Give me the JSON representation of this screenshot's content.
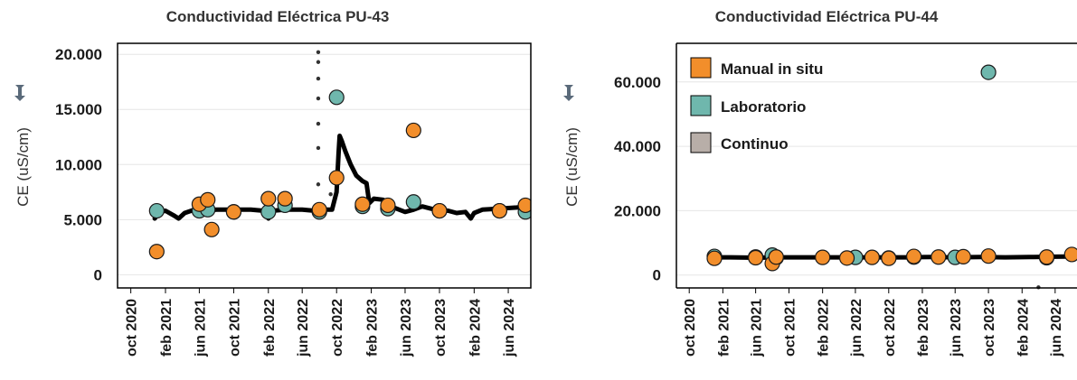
{
  "colors": {
    "manual": "#f28e2b",
    "laboratorio": "#6fb7ad",
    "continuo": "#b8aea8",
    "continuo_line": "#000000",
    "pin": "#5a6a7a"
  },
  "legend": {
    "items": [
      {
        "label": "Manual in situ",
        "color": "#f28e2b"
      },
      {
        "label": "Laboratorio",
        "color": "#6fb7ad"
      },
      {
        "label": "Continuo",
        "color": "#b8aea8"
      }
    ]
  },
  "chart_data": [
    {
      "type": "scatter",
      "title": "Conductividad Eléctrica PU-43",
      "ylabel": "CE (uS/cm)",
      "xlim": [
        "2020-08-15",
        "2024-08-20"
      ],
      "ylim": [
        -1200,
        21000
      ],
      "yticks": [
        {
          "value": 0,
          "label": "0"
        },
        {
          "value": 5000,
          "label": "5.000"
        },
        {
          "value": 10000,
          "label": "10.000"
        },
        {
          "value": 15000,
          "label": "15.000"
        },
        {
          "value": 20000,
          "label": "20.000"
        }
      ],
      "xticks": [
        {
          "date": "2020-10-01",
          "label": "oct 2020"
        },
        {
          "date": "2021-02-01",
          "label": "feb 2021"
        },
        {
          "date": "2021-06-01",
          "label": "jun 2021"
        },
        {
          "date": "2021-10-01",
          "label": "oct 2021"
        },
        {
          "date": "2022-02-01",
          "label": "feb 2022"
        },
        {
          "date": "2022-06-01",
          "label": "jun 2022"
        },
        {
          "date": "2022-10-01",
          "label": "oct 2022"
        },
        {
          "date": "2023-02-01",
          "label": "feb 2023"
        },
        {
          "date": "2023-06-01",
          "label": "jun 2023"
        },
        {
          "date": "2023-10-01",
          "label": "oct 2023"
        },
        {
          "date": "2024-02-01",
          "label": "feb 2024"
        },
        {
          "date": "2024-06-01",
          "label": "jun 2024"
        }
      ],
      "series": [
        {
          "name": "Continuo",
          "kind": "continuous",
          "points": [
            [
              "2020-12-25",
              5100
            ],
            [
              "2021-01-10",
              5700
            ],
            [
              "2021-02-01",
              5800
            ],
            [
              "2021-03-01",
              5400
            ],
            [
              "2021-03-20",
              5100
            ],
            [
              "2021-04-10",
              5600
            ],
            [
              "2021-05-15",
              5900
            ],
            [
              "2021-06-15",
              5800
            ],
            [
              "2021-08-01",
              5900
            ],
            [
              "2021-10-01",
              5900
            ],
            [
              "2021-12-01",
              5900
            ],
            [
              "2022-01-15",
              5800
            ],
            [
              "2022-02-01",
              5100
            ],
            [
              "2022-02-15",
              5800
            ],
            [
              "2022-04-01",
              5900
            ],
            [
              "2022-06-01",
              5900
            ],
            [
              "2022-07-15",
              5800
            ],
            [
              "2022-08-10",
              5900
            ],
            [
              "2022-09-15",
              5900
            ],
            [
              "2022-10-01",
              7500
            ],
            [
              "2022-10-08",
              11000
            ],
            [
              "2022-10-12",
              12600
            ],
            [
              "2022-10-20",
              12100
            ],
            [
              "2022-11-01",
              11200
            ],
            [
              "2022-11-20",
              10000
            ],
            [
              "2022-12-10",
              9000
            ],
            [
              "2023-01-01",
              8500
            ],
            [
              "2023-01-15",
              8300
            ],
            [
              "2023-01-25",
              6500
            ],
            [
              "2023-02-10",
              6900
            ],
            [
              "2023-03-15",
              6800
            ],
            [
              "2023-04-01",
              6300
            ],
            [
              "2023-05-01",
              6000
            ],
            [
              "2023-06-01",
              5700
            ],
            [
              "2023-07-01",
              5900
            ],
            [
              "2023-08-01",
              6200
            ],
            [
              "2023-09-15",
              5900
            ],
            [
              "2023-11-01",
              5800
            ],
            [
              "2023-12-01",
              5600
            ],
            [
              "2024-01-01",
              5700
            ],
            [
              "2024-01-20",
              5100
            ],
            [
              "2024-02-01",
              5600
            ],
            [
              "2024-03-01",
              5900
            ],
            [
              "2024-05-01",
              6000
            ],
            [
              "2024-07-01",
              6100
            ],
            [
              "2024-08-15",
              6200
            ]
          ]
        },
        {
          "name": "Continuo",
          "kind": "dots",
          "points": [
            [
              "2022-07-28",
              20200
            ],
            [
              "2022-07-28",
              19300
            ],
            [
              "2022-07-28",
              17800
            ],
            [
              "2022-07-28",
              16000
            ],
            [
              "2022-07-28",
              13700
            ],
            [
              "2022-07-28",
              11500
            ],
            [
              "2022-07-28",
              8200
            ],
            [
              "2022-07-28",
              5200
            ],
            [
              "2022-09-10",
              7300
            ]
          ]
        },
        {
          "name": "Laboratorio",
          "kind": "markers",
          "points": [
            [
              "2021-01-01",
              5800
            ],
            [
              "2021-06-01",
              5800
            ],
            [
              "2021-07-01",
              5900
            ],
            [
              "2021-10-01",
              5700
            ],
            [
              "2022-02-01",
              5700
            ],
            [
              "2022-04-01",
              6300
            ],
            [
              "2022-08-01",
              5700
            ],
            [
              "2022-10-01",
              16100
            ],
            [
              "2023-01-01",
              6200
            ],
            [
              "2023-04-01",
              6000
            ],
            [
              "2023-07-01",
              6600
            ],
            [
              "2023-10-01",
              5800
            ],
            [
              "2024-05-01",
              5800
            ],
            [
              "2024-08-01",
              5700
            ]
          ]
        },
        {
          "name": "Manual in situ",
          "kind": "markers",
          "points": [
            [
              "2021-01-01",
              2100
            ],
            [
              "2021-06-01",
              6400
            ],
            [
              "2021-07-01",
              6800
            ],
            [
              "2021-07-15",
              4100
            ],
            [
              "2021-10-01",
              5700
            ],
            [
              "2022-02-01",
              6900
            ],
            [
              "2022-04-01",
              6900
            ],
            [
              "2022-08-01",
              5900
            ],
            [
              "2022-10-01",
              8800
            ],
            [
              "2023-01-01",
              6400
            ],
            [
              "2023-04-01",
              6300
            ],
            [
              "2023-07-01",
              13100
            ],
            [
              "2023-10-01",
              5800
            ],
            [
              "2024-05-01",
              5800
            ],
            [
              "2024-08-01",
              6300
            ]
          ]
        }
      ]
    },
    {
      "type": "scatter",
      "title": "Conductividad Eléctrica PU-44",
      "ylabel": "CE (uS/cm)",
      "xlim": [
        "2020-08-15",
        "2024-08-20"
      ],
      "ylim": [
        -4000,
        72000
      ],
      "yticks": [
        {
          "value": 0,
          "label": "0"
        },
        {
          "value": 20000,
          "label": "20.000"
        },
        {
          "value": 40000,
          "label": "40.000"
        },
        {
          "value": 60000,
          "label": "60.000"
        }
      ],
      "xticks": [
        {
          "date": "2020-10-01",
          "label": "oct 2020"
        },
        {
          "date": "2021-02-01",
          "label": "feb 2021"
        },
        {
          "date": "2021-06-01",
          "label": "jun 2021"
        },
        {
          "date": "2021-10-01",
          "label": "oct 2021"
        },
        {
          "date": "2022-02-01",
          "label": "feb 2022"
        },
        {
          "date": "2022-06-01",
          "label": "jun 2022"
        },
        {
          "date": "2022-10-01",
          "label": "oct 2022"
        },
        {
          "date": "2023-02-01",
          "label": "feb 2023"
        },
        {
          "date": "2023-06-01",
          "label": "jun 2023"
        },
        {
          "date": "2023-10-01",
          "label": "oct 2023"
        },
        {
          "date": "2024-02-01",
          "label": "feb 2024"
        },
        {
          "date": "2024-06-01",
          "label": "jun 2024"
        }
      ],
      "series": [
        {
          "name": "Continuo",
          "kind": "continuous",
          "points": [
            [
              "2020-12-20",
              5500
            ],
            [
              "2021-03-01",
              5500
            ],
            [
              "2021-06-01",
              5400
            ],
            [
              "2021-09-01",
              5500
            ],
            [
              "2021-12-01",
              5500
            ],
            [
              "2022-03-01",
              5500
            ],
            [
              "2022-06-01",
              5500
            ],
            [
              "2022-09-01",
              5500
            ],
            [
              "2022-12-01",
              5500
            ],
            [
              "2023-03-01",
              5600
            ],
            [
              "2023-06-01",
              5500
            ],
            [
              "2023-09-01",
              5600
            ],
            [
              "2023-12-01",
              5500
            ],
            [
              "2024-03-01",
              5600
            ],
            [
              "2024-06-01",
              5700
            ],
            [
              "2024-08-15",
              5800
            ]
          ]
        },
        {
          "name": "Continuo",
          "kind": "dots",
          "points": [
            [
              "2024-04-01",
              -3800
            ]
          ]
        },
        {
          "name": "Laboratorio",
          "kind": "markers",
          "points": [
            [
              "2021-01-01",
              5800
            ],
            [
              "2021-06-01",
              5600
            ],
            [
              "2021-08-01",
              6200
            ],
            [
              "2021-08-15",
              5400
            ],
            [
              "2022-06-01",
              5500
            ],
            [
              "2022-10-01",
              5300
            ],
            [
              "2023-01-01",
              5600
            ],
            [
              "2023-06-01",
              5500
            ],
            [
              "2023-10-01",
              63000
            ],
            [
              "2024-05-01",
              5400
            ]
          ]
        },
        {
          "name": "Manual in situ",
          "kind": "markers",
          "points": [
            [
              "2021-01-01",
              5200
            ],
            [
              "2021-06-01",
              5400
            ],
            [
              "2021-08-01",
              3600
            ],
            [
              "2021-08-15",
              5600
            ],
            [
              "2022-02-01",
              5500
            ],
            [
              "2022-05-01",
              5300
            ],
            [
              "2022-08-01",
              5500
            ],
            [
              "2022-10-01",
              5200
            ],
            [
              "2023-01-01",
              5800
            ],
            [
              "2023-04-01",
              5600
            ],
            [
              "2023-07-01",
              5700
            ],
            [
              "2023-10-01",
              5900
            ],
            [
              "2024-05-01",
              5600
            ],
            [
              "2024-08-01",
              6400
            ]
          ]
        }
      ]
    }
  ]
}
